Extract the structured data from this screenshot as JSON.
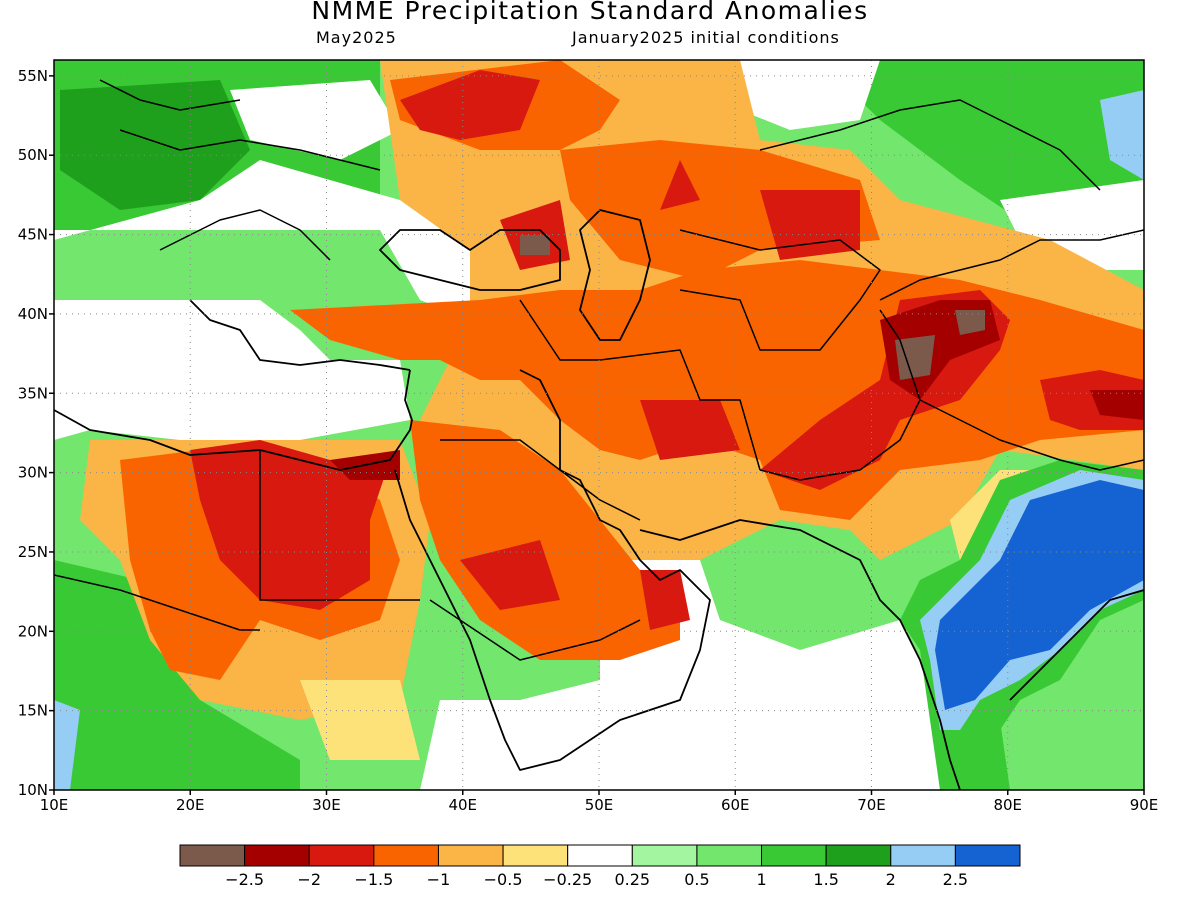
{
  "title": "NMME Precipitation Standard Anomalies",
  "subtitle_left": "May2025",
  "subtitle_right": "January2025 initial conditions",
  "map": {
    "lon_range": [
      10,
      90
    ],
    "lat_range": [
      10,
      56
    ],
    "x_ticks": [
      "10E",
      "20E",
      "30E",
      "40E",
      "50E",
      "60E",
      "70E",
      "80E",
      "90E"
    ],
    "y_ticks": [
      "10N",
      "15N",
      "20N",
      "25N",
      "30N",
      "35N",
      "40N",
      "45N",
      "50N",
      "55N"
    ],
    "gridlines": "dotted"
  },
  "legend": {
    "colors": [
      "#7b5a4c",
      "#a50000",
      "#d7190f",
      "#fa6400",
      "#fbb446",
      "#fde27a",
      "#ffffff",
      "#a3f59f",
      "#72e66d",
      "#39c934",
      "#1ea01c",
      "#96cdf5",
      "#1563d2"
    ],
    "labels": [
      "−2.5",
      "−2",
      "−1.5",
      "−1",
      "−0.5",
      "−0.25",
      "0.25",
      "0.5",
      "1",
      "1.5",
      "2",
      "2.5"
    ]
  }
}
